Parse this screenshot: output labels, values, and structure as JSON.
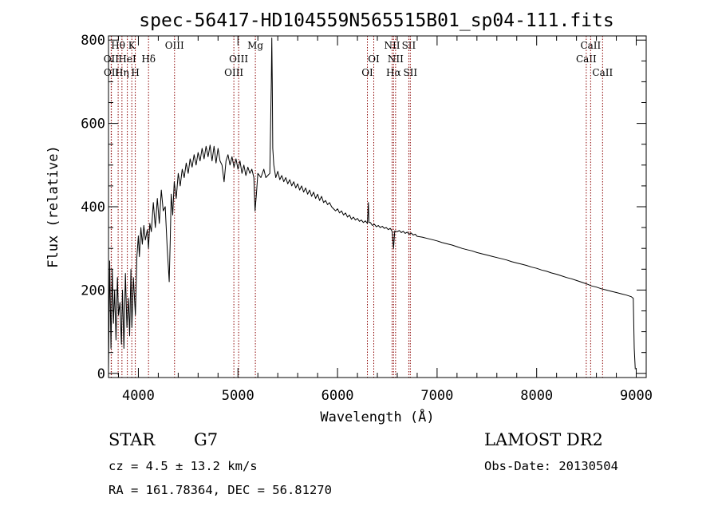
{
  "chart_data": {
    "type": "line",
    "title": "spec-56417-HD104559N565515B01_sp04-111.fits",
    "xlabel": "Wavelength (Å)",
    "ylabel": "Flux (relative)",
    "xlim": [
      3700,
      9100
    ],
    "ylim": [
      -10,
      810
    ],
    "xticks": [
      4000,
      5000,
      6000,
      7000,
      8000,
      9000
    ],
    "yticks": [
      0,
      200,
      400,
      600,
      800
    ],
    "grid": false,
    "series": [
      {
        "values": [
          [
            3700,
            10
          ],
          [
            3712,
            270
          ],
          [
            3725,
            60
          ],
          [
            3738,
            250
          ],
          [
            3750,
            120
          ],
          [
            3762,
            200
          ],
          [
            3775,
            80
          ],
          [
            3790,
            230
          ],
          [
            3800,
            140
          ],
          [
            3815,
            170
          ],
          [
            3830,
            70
          ],
          [
            3840,
            200
          ],
          [
            3855,
            60
          ],
          [
            3870,
            240
          ],
          [
            3885,
            110
          ],
          [
            3900,
            180
          ],
          [
            3912,
            90
          ],
          [
            3925,
            250
          ],
          [
            3935,
            110
          ],
          [
            3950,
            230
          ],
          [
            3970,
            140
          ],
          [
            3985,
            280
          ],
          [
            4000,
            330
          ],
          [
            4010,
            280
          ],
          [
            4025,
            350
          ],
          [
            4040,
            310
          ],
          [
            4055,
            355
          ],
          [
            4070,
            320
          ],
          [
            4090,
            345
          ],
          [
            4101,
            300
          ],
          [
            4115,
            360
          ],
          [
            4130,
            340
          ],
          [
            4150,
            410
          ],
          [
            4170,
            350
          ],
          [
            4190,
            420
          ],
          [
            4210,
            360
          ],
          [
            4230,
            440
          ],
          [
            4250,
            390
          ],
          [
            4270,
            400
          ],
          [
            4290,
            300
          ],
          [
            4300,
            260
          ],
          [
            4310,
            220
          ],
          [
            4320,
            320
          ],
          [
            4330,
            430
          ],
          [
            4345,
            380
          ],
          [
            4360,
            460
          ],
          [
            4380,
            420
          ],
          [
            4400,
            480
          ],
          [
            4420,
            450
          ],
          [
            4440,
            490
          ],
          [
            4460,
            470
          ],
          [
            4480,
            505
          ],
          [
            4500,
            480
          ],
          [
            4520,
            515
          ],
          [
            4540,
            495
          ],
          [
            4560,
            525
          ],
          [
            4580,
            500
          ],
          [
            4600,
            530
          ],
          [
            4620,
            510
          ],
          [
            4640,
            540
          ],
          [
            4660,
            515
          ],
          [
            4680,
            545
          ],
          [
            4700,
            520
          ],
          [
            4720,
            548
          ],
          [
            4740,
            510
          ],
          [
            4760,
            545
          ],
          [
            4780,
            505
          ],
          [
            4800,
            540
          ],
          [
            4820,
            510
          ],
          [
            4840,
            500
          ],
          [
            4861,
            460
          ],
          [
            4880,
            510
          ],
          [
            4900,
            525
          ],
          [
            4920,
            500
          ],
          [
            4940,
            520
          ],
          [
            4960,
            495
          ],
          [
            4980,
            515
          ],
          [
            5000,
            490
          ],
          [
            5020,
            510
          ],
          [
            5040,
            480
          ],
          [
            5060,
            500
          ],
          [
            5080,
            475
          ],
          [
            5100,
            495
          ],
          [
            5120,
            480
          ],
          [
            5140,
            490
          ],
          [
            5160,
            470
          ],
          [
            5172,
            390
          ],
          [
            5185,
            430
          ],
          [
            5200,
            480
          ],
          [
            5230,
            470
          ],
          [
            5260,
            490
          ],
          [
            5280,
            470
          ],
          [
            5300,
            475
          ],
          [
            5320,
            480
          ],
          [
            5335,
            700
          ],
          [
            5340,
            805
          ],
          [
            5345,
            700
          ],
          [
            5350,
            540
          ],
          [
            5360,
            500
          ],
          [
            5380,
            470
          ],
          [
            5400,
            485
          ],
          [
            5420,
            465
          ],
          [
            5440,
            475
          ],
          [
            5460,
            460
          ],
          [
            5480,
            470
          ],
          [
            5500,
            455
          ],
          [
            5520,
            465
          ],
          [
            5540,
            450
          ],
          [
            5560,
            460
          ],
          [
            5580,
            445
          ],
          [
            5600,
            455
          ],
          [
            5620,
            440
          ],
          [
            5640,
            450
          ],
          [
            5660,
            435
          ],
          [
            5680,
            445
          ],
          [
            5700,
            430
          ],
          [
            5720,
            440
          ],
          [
            5740,
            425
          ],
          [
            5760,
            435
          ],
          [
            5780,
            420
          ],
          [
            5800,
            430
          ],
          [
            5820,
            415
          ],
          [
            5840,
            425
          ],
          [
            5860,
            410
          ],
          [
            5880,
            415
          ],
          [
            5900,
            405
          ],
          [
            5920,
            410
          ],
          [
            5940,
            400
          ],
          [
            5960,
            395
          ],
          [
            5980,
            390
          ],
          [
            6000,
            395
          ],
          [
            6020,
            385
          ],
          [
            6040,
            390
          ],
          [
            6060,
            380
          ],
          [
            6080,
            385
          ],
          [
            6100,
            375
          ],
          [
            6120,
            380
          ],
          [
            6140,
            370
          ],
          [
            6160,
            375
          ],
          [
            6180,
            368
          ],
          [
            6200,
            372
          ],
          [
            6220,
            365
          ],
          [
            6240,
            368
          ],
          [
            6260,
            362
          ],
          [
            6280,
            366
          ],
          [
            6300,
            360
          ],
          [
            6310,
            410
          ],
          [
            6315,
            362
          ],
          [
            6330,
            362
          ],
          [
            6350,
            355
          ],
          [
            6370,
            358
          ],
          [
            6390,
            352
          ],
          [
            6410,
            355
          ],
          [
            6430,
            350
          ],
          [
            6450,
            353
          ],
          [
            6470,
            348
          ],
          [
            6490,
            350
          ],
          [
            6510,
            345
          ],
          [
            6530,
            348
          ],
          [
            6550,
            340
          ],
          [
            6563,
            300
          ],
          [
            6575,
            342
          ],
          [
            6600,
            340
          ],
          [
            6620,
            343
          ],
          [
            6640,
            338
          ],
          [
            6660,
            341
          ],
          [
            6680,
            336
          ],
          [
            6700,
            339
          ],
          [
            6720,
            334
          ],
          [
            6740,
            337
          ],
          [
            6760,
            332
          ],
          [
            6780,
            334
          ],
          [
            6800,
            329
          ],
          [
            6850,
            327
          ],
          [
            6900,
            324
          ],
          [
            6950,
            321
          ],
          [
            7000,
            318
          ],
          [
            7050,
            314
          ],
          [
            7100,
            311
          ],
          [
            7150,
            308
          ],
          [
            7200,
            304
          ],
          [
            7250,
            300
          ],
          [
            7300,
            297
          ],
          [
            7350,
            294
          ],
          [
            7400,
            290
          ],
          [
            7450,
            287
          ],
          [
            7500,
            284
          ],
          [
            7550,
            281
          ],
          [
            7600,
            278
          ],
          [
            7650,
            275
          ],
          [
            7700,
            272
          ],
          [
            7750,
            268
          ],
          [
            7800,
            265
          ],
          [
            7850,
            262
          ],
          [
            7900,
            259
          ],
          [
            7950,
            255
          ],
          [
            8000,
            252
          ],
          [
            8050,
            248
          ],
          [
            8100,
            245
          ],
          [
            8150,
            241
          ],
          [
            8200,
            238
          ],
          [
            8250,
            234
          ],
          [
            8300,
            230
          ],
          [
            8350,
            227
          ],
          [
            8400,
            223
          ],
          [
            8450,
            219
          ],
          [
            8500,
            215
          ],
          [
            8550,
            210
          ],
          [
            8600,
            207
          ],
          [
            8650,
            203
          ],
          [
            8700,
            200
          ],
          [
            8750,
            197
          ],
          [
            8800,
            194
          ],
          [
            8850,
            191
          ],
          [
            8900,
            188
          ],
          [
            8950,
            184
          ],
          [
            8970,
            180
          ],
          [
            8980,
            60
          ],
          [
            8990,
            10
          ]
        ]
      }
    ],
    "emission_lines": [
      {
        "label": "OII",
        "wave": 3727,
        "row": 2
      },
      {
        "label": "OII",
        "wave": 3729,
        "row": 3
      },
      {
        "label": "Hθ",
        "wave": 3797,
        "row": 1
      },
      {
        "label": "Hη",
        "wave": 3835,
        "row": 3
      },
      {
        "label": "HeI",
        "wave": 3889,
        "row": 2
      },
      {
        "label": "K",
        "wave": 3934,
        "row": 1
      },
      {
        "label": "H",
        "wave": 3969,
        "row": 3
      },
      {
        "label": "Hδ",
        "wave": 4102,
        "row": 2
      },
      {
        "label": "OIII",
        "wave": 4363,
        "row": 1
      },
      {
        "label": "OIII",
        "wave": 4959,
        "row": 3
      },
      {
        "label": "OIII",
        "wave": 5007,
        "row": 2
      },
      {
        "label": "Mg",
        "wave": 5175,
        "row": 1
      },
      {
        "label": "OI",
        "wave": 6300,
        "row": 3
      },
      {
        "label": "OI",
        "wave": 6364,
        "row": 2
      },
      {
        "label": "NII",
        "wave": 6548,
        "row": 1
      },
      {
        "label": "Hα",
        "wave": 6563,
        "row": 3
      },
      {
        "label": "NII",
        "wave": 6583,
        "row": 2
      },
      {
        "label": "SII",
        "wave": 6716,
        "row": 1
      },
      {
        "label": "SII",
        "wave": 6731,
        "row": 3
      },
      {
        "label": "CaII",
        "wave": 8498,
        "row": 2
      },
      {
        "label": "CaII",
        "wave": 8542,
        "row": 1
      },
      {
        "label": "CaII",
        "wave": 8662,
        "row": 3
      }
    ],
    "line_color": "#8b0000"
  },
  "info": {
    "object_class": "STAR",
    "subclass": "G7",
    "redshift": "cz = 4.5 ± 13.2 km/s",
    "coords": "RA = 161.78364, DEC =  56.81270",
    "survey": "LAMOST DR2",
    "obs_date": "Obs-Date: 20130504"
  }
}
